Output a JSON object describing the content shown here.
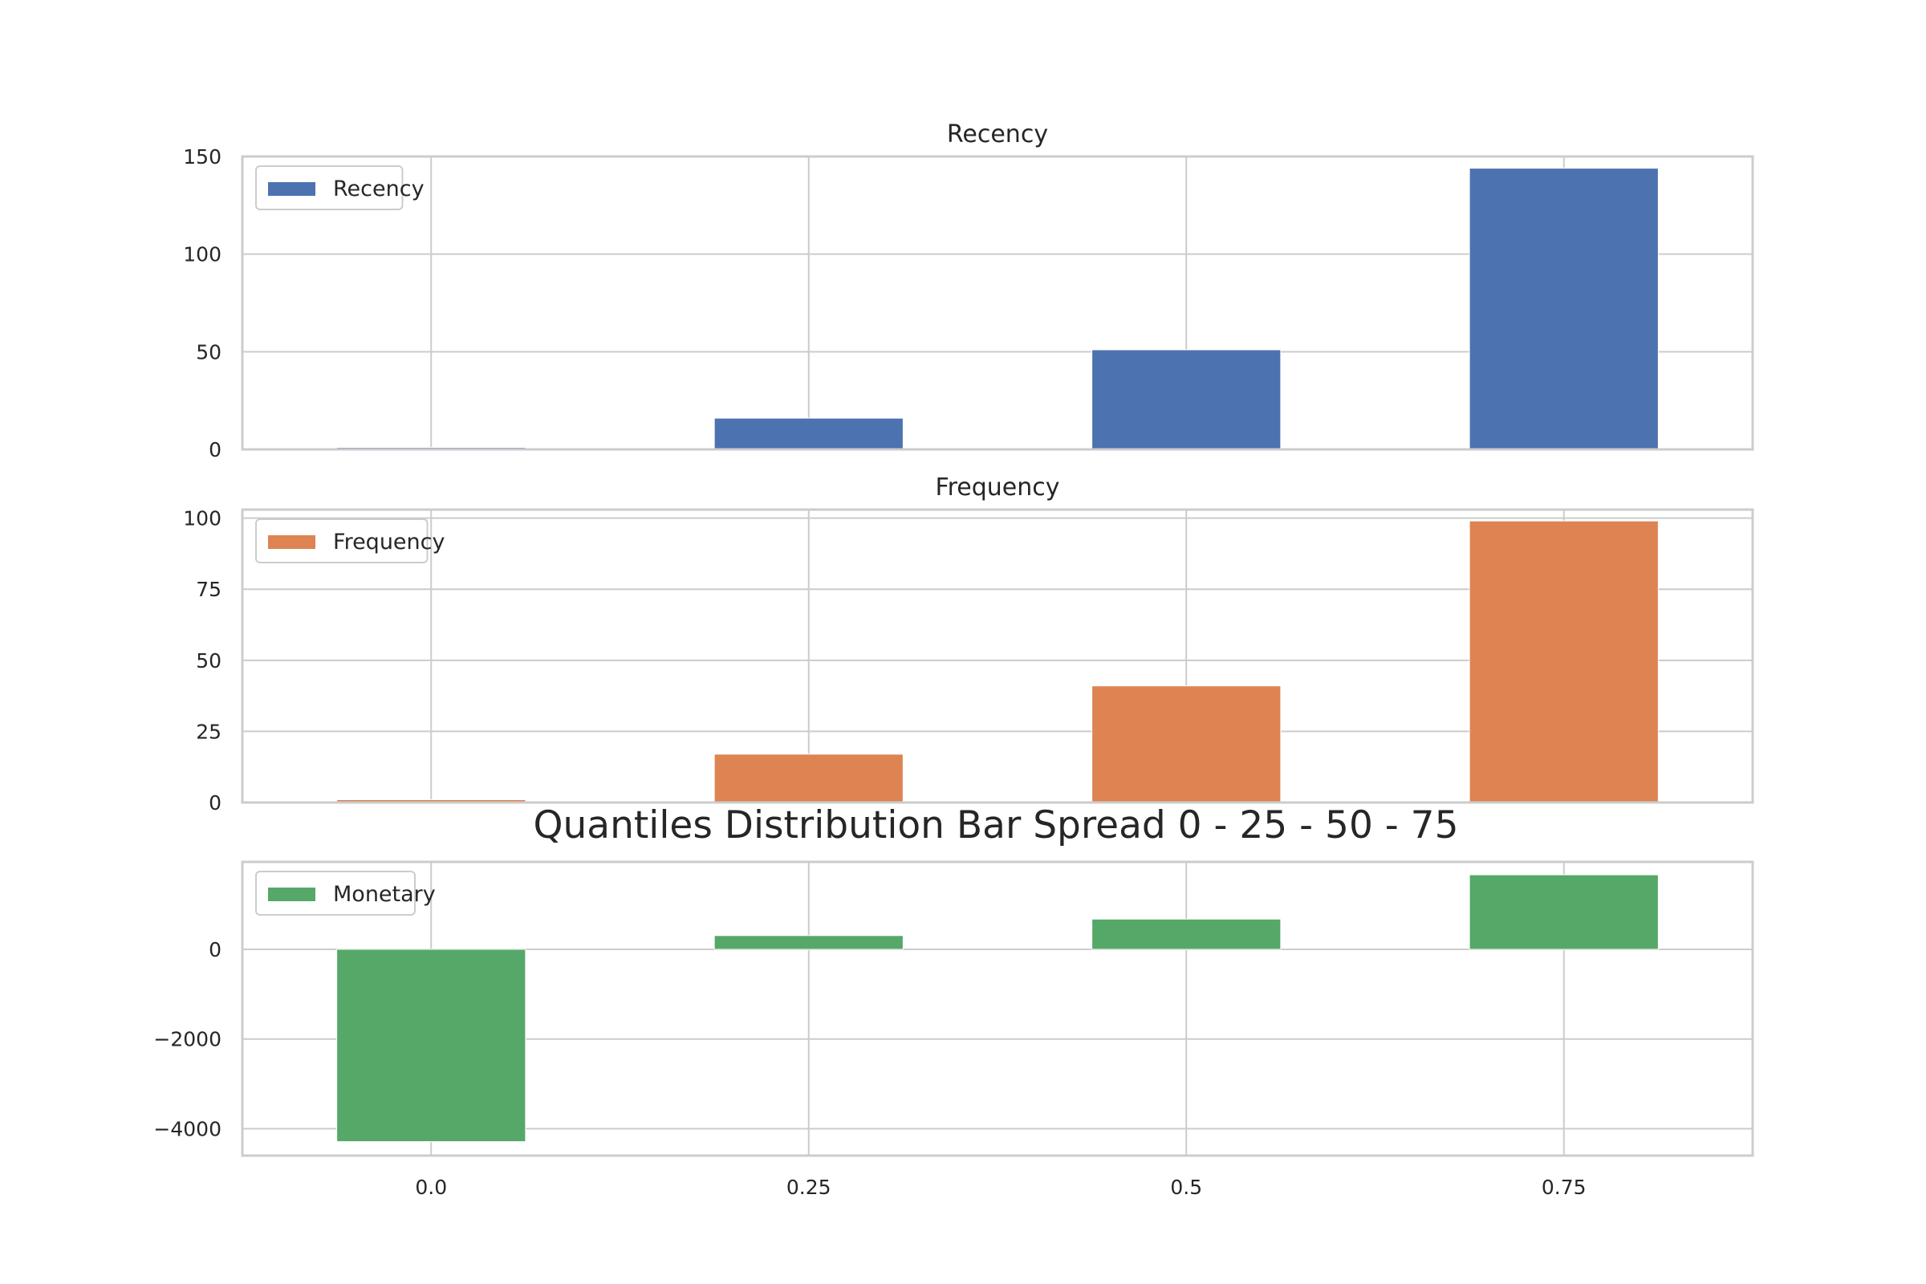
{
  "figure": {
    "suptitle": "Quantiles Distribution Bar Spread 0 - 25 - 50 - 75"
  },
  "chart_data": [
    {
      "type": "bar",
      "title": "Recency",
      "categories": [
        "0.0",
        "0.25",
        "0.5",
        "0.75"
      ],
      "series": [
        {
          "name": "Recency",
          "values": [
            1,
            16,
            51,
            144
          ],
          "color": "#4c72b0"
        }
      ],
      "ylim": [
        0,
        150
      ],
      "yticks": [
        0,
        50,
        100,
        150
      ],
      "ytick_labels": [
        "0",
        "50",
        "100",
        "150"
      ],
      "show_xticklabels": false,
      "legend": "upper left",
      "grid": true
    },
    {
      "type": "bar",
      "title": "Frequency",
      "categories": [
        "0.0",
        "0.25",
        "0.5",
        "0.75"
      ],
      "series": [
        {
          "name": "Frequency",
          "values": [
            1,
            17,
            41,
            99
          ],
          "color": "#dd8452"
        }
      ],
      "ylim": [
        0,
        103
      ],
      "yticks": [
        0,
        25,
        50,
        75,
        100
      ],
      "ytick_labels": [
        "0",
        "25",
        "50",
        "75",
        "100"
      ],
      "show_xticklabels": false,
      "legend": "upper left",
      "grid": true
    },
    {
      "type": "bar",
      "title": "",
      "categories": [
        "0.0",
        "0.25",
        "0.5",
        "0.75"
      ],
      "series": [
        {
          "name": "Monetary",
          "values": [
            -4288,
            307,
            674,
            1662
          ],
          "color": "#55a868"
        }
      ],
      "ylim": [
        -4600,
        1950
      ],
      "yticks": [
        -4000,
        -2000,
        0
      ],
      "ytick_labels": [
        "−4000",
        "−2000",
        "0"
      ],
      "show_xticklabels": true,
      "legend": "upper left",
      "grid": true
    }
  ]
}
